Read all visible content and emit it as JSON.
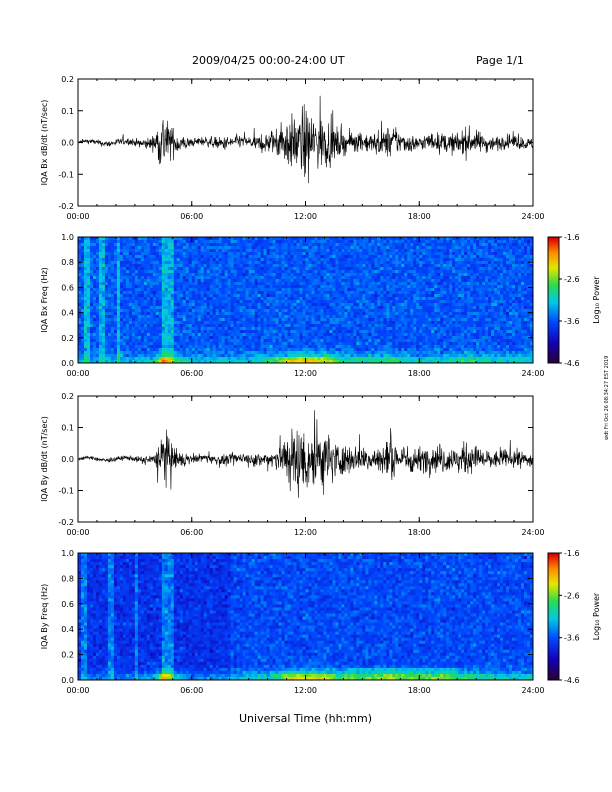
{
  "header": {
    "title": "2009/04/25  00:00-24:00 UT",
    "page": "Page 1/1"
  },
  "side_note": "wdt Fri Oct 26 08:34:27 EST 2019",
  "xlabel": "Universal Time (hh:mm)",
  "chart_data": [
    {
      "type": "line",
      "name": "bx-time-series",
      "ylabel": "IQA Bx dB/dt (nT/sec)",
      "x_ticks": [
        "00:00",
        "06:00",
        "12:00",
        "18:00",
        "24:00"
      ],
      "xlim": [
        0,
        24
      ],
      "ylim": [
        -0.2,
        0.2
      ],
      "y_ticks": [
        "0.2",
        "0.1",
        "0.0",
        "-0.1",
        "-0.2"
      ],
      "series": [
        {
          "x": [
            0,
            1,
            2,
            3,
            4,
            4.5,
            4.7,
            5,
            6,
            7,
            8,
            9,
            10,
            10.5,
            11,
            11.5,
            11.8,
            12,
            12.5,
            13,
            13.5,
            14,
            15,
            16,
            16.5,
            17,
            18,
            19,
            20,
            20.5,
            21,
            22,
            23,
            24
          ],
          "amp": [
            0.01,
            0.015,
            0.02,
            0.02,
            0.04,
            0.19,
            0.12,
            0.08,
            0.02,
            0.03,
            0.04,
            0.03,
            0.06,
            0.08,
            0.14,
            0.15,
            0.2,
            0.19,
            0.15,
            0.15,
            0.1,
            0.06,
            0.05,
            0.07,
            0.09,
            0.06,
            0.04,
            0.05,
            0.06,
            0.08,
            0.06,
            0.04,
            0.04,
            0.03
          ]
        }
      ]
    },
    {
      "type": "heatmap",
      "name": "bx-spectrogram",
      "ylabel": "IQA Bx Freq (Hz)",
      "x_ticks": [
        "00:00",
        "06:00",
        "12:00",
        "18:00",
        "24:00"
      ],
      "xlim": [
        0,
        24
      ],
      "ylim": [
        0,
        1.0
      ],
      "y_ticks": [
        "1.0",
        "0.8",
        "0.6",
        "0.4",
        "0.2",
        "0.0"
      ],
      "colorbar": {
        "label": "Log₁₀ Power",
        "range": [
          -4.6,
          -1.6
        ],
        "ticks": [
          "-1.6",
          "-2.6",
          "-3.6",
          "-4.6"
        ]
      }
    },
    {
      "type": "line",
      "name": "by-time-series",
      "ylabel": "IQA By dB/dt (nT/sec)",
      "x_ticks": [
        "00:00",
        "06:00",
        "12:00",
        "18:00",
        "24:00"
      ],
      "xlim": [
        0,
        24
      ],
      "ylim": [
        -0.2,
        0.2
      ],
      "y_ticks": [
        "0.2",
        "0.1",
        "0.0",
        "-0.1",
        "-0.2"
      ],
      "series": [
        {
          "x": [
            0,
            1,
            2,
            3,
            4,
            4.5,
            4.7,
            5,
            6,
            7,
            8,
            9,
            10,
            10.5,
            11,
            11.5,
            11.8,
            12,
            12.5,
            13,
            13.5,
            14,
            15,
            16,
            16.5,
            17,
            18,
            19,
            20,
            20.5,
            21,
            22,
            23,
            24
          ],
          "amp": [
            0.008,
            0.01,
            0.012,
            0.015,
            0.03,
            0.18,
            0.14,
            0.07,
            0.02,
            0.025,
            0.03,
            0.03,
            0.05,
            0.07,
            0.15,
            0.2,
            0.2,
            0.19,
            0.2,
            0.18,
            0.12,
            0.08,
            0.07,
            0.09,
            0.11,
            0.08,
            0.07,
            0.08,
            0.07,
            0.09,
            0.07,
            0.05,
            0.05,
            0.04
          ]
        }
      ]
    },
    {
      "type": "heatmap",
      "name": "by-spectrogram",
      "ylabel": "IQA By Freq (Hz)",
      "x_ticks": [
        "00:00",
        "06:00",
        "12:00",
        "18:00",
        "24:00"
      ],
      "xlim": [
        0,
        24
      ],
      "ylim": [
        0,
        1.0
      ],
      "y_ticks": [
        "1.0",
        "0.8",
        "0.6",
        "0.4",
        "0.2",
        "0.0"
      ],
      "colorbar": {
        "label": "Log₁₀ Power",
        "range": [
          -4.6,
          -1.6
        ],
        "ticks": [
          "-1.6",
          "-2.6",
          "-3.6",
          "-4.6"
        ]
      }
    }
  ]
}
